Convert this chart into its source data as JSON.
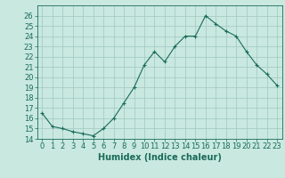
{
  "x": [
    0,
    1,
    2,
    3,
    4,
    5,
    6,
    7,
    8,
    9,
    10,
    11,
    12,
    13,
    14,
    15,
    16,
    17,
    18,
    19,
    20,
    21,
    22,
    23
  ],
  "y": [
    16.5,
    15.2,
    15.0,
    14.7,
    14.5,
    14.3,
    15.0,
    16.0,
    17.5,
    19.0,
    21.2,
    22.5,
    21.5,
    23.0,
    24.0,
    24.0,
    26.0,
    25.2,
    24.5,
    24.0,
    22.5,
    21.2,
    20.3,
    19.2
  ],
  "line_color": "#1a6b5a",
  "marker": "+",
  "marker_size": 3,
  "bg_color": "#c8e8e0",
  "grid_color": "#a0c8c0",
  "xlabel": "Humidex (Indice chaleur)",
  "xlim": [
    -0.5,
    23.5
  ],
  "ylim": [
    14,
    27
  ],
  "yticks": [
    14,
    15,
    16,
    17,
    18,
    19,
    20,
    21,
    22,
    23,
    24,
    25,
    26
  ],
  "xticks": [
    0,
    1,
    2,
    3,
    4,
    5,
    6,
    7,
    8,
    9,
    10,
    11,
    12,
    13,
    14,
    15,
    16,
    17,
    18,
    19,
    20,
    21,
    22,
    23
  ],
  "label_fontsize": 7,
  "tick_fontsize": 6
}
